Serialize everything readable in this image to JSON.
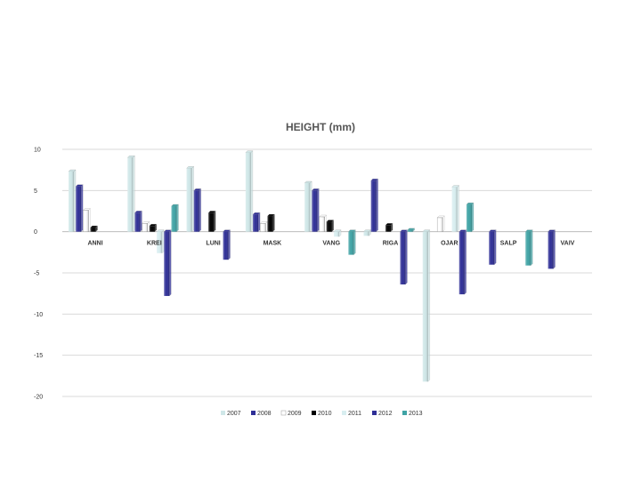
{
  "chart_data": {
    "type": "bar",
    "title": "HEIGHT (mm)",
    "xlabel": "",
    "ylabel": "",
    "ylim": [
      -20,
      10
    ],
    "yticks": [
      10,
      5,
      0,
      -5,
      -10,
      -15,
      -20
    ],
    "grid": true,
    "legend_position": "bottom",
    "categories": [
      "ANNI",
      "KREI",
      "LUNI",
      "MASK",
      "VANG",
      "RIGA",
      "OJAR",
      "SALP",
      "VAIV"
    ],
    "series": [
      {
        "name": "2007",
        "color": "#cfe7e8",
        "values": [
          7.3,
          9.0,
          7.7,
          9.6,
          5.9,
          -0.5,
          -18.2,
          null,
          null
        ]
      },
      {
        "name": "2008",
        "color": "#2e2e96",
        "values": [
          5.5,
          2.3,
          5.0,
          2.1,
          5.0,
          6.2,
          null,
          -4.0,
          -4.5
        ]
      },
      {
        "name": "2009",
        "color": "#ffffff",
        "values": [
          2.6,
          1.0,
          null,
          1.0,
          1.8,
          null,
          1.7,
          null,
          null
        ]
      },
      {
        "name": "2010",
        "color": "#000000",
        "values": [
          0.5,
          0.7,
          2.3,
          1.9,
          1.2,
          0.8,
          null,
          null,
          null
        ]
      },
      {
        "name": "2011",
        "color": "#d8eef0",
        "values": [
          null,
          -2.6,
          null,
          null,
          -0.6,
          null,
          5.4,
          null,
          null
        ]
      },
      {
        "name": "2012",
        "color": "#2e2e96",
        "values": [
          null,
          -7.8,
          -3.4,
          null,
          null,
          -6.4,
          -7.6,
          null,
          null
        ]
      },
      {
        "name": "2013",
        "color": "#3fa3a5",
        "values": [
          null,
          3.1,
          null,
          null,
          -2.8,
          0.2,
          3.3,
          -4.1,
          null
        ]
      }
    ]
  }
}
